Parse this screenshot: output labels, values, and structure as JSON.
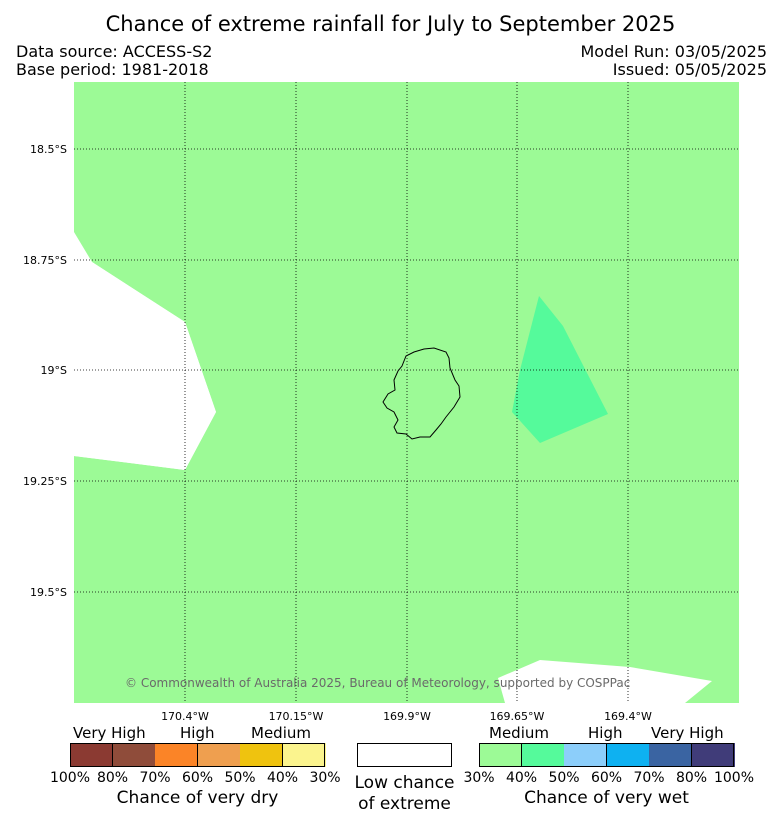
{
  "title": "Chance of extreme rainfall for July to September 2025",
  "meta": {
    "data_source": "Data source: ACCESS-S2",
    "base_period": "Base period: 1981-2018",
    "model_run": "Model Run: 03/05/2025",
    "issued": "Issued: 05/05/2025"
  },
  "map": {
    "lat_labels": [
      "18.5°S",
      "18.75°S",
      "19°S",
      "19.25°S",
      "19.5°S"
    ],
    "lon_labels": [
      "170.4°W",
      "170.15°W",
      "169.9°W",
      "169.65°W",
      "169.4°W"
    ],
    "credit": "© Commonwealth of Australia 2025, Bureau of Meteorology, supported by COSPPac",
    "colors": {
      "medium_wet": "#9cfa96",
      "medium_wet_high": "#55fa9b",
      "low_chance": "#ffffff"
    }
  },
  "legend": {
    "dry_groups": [
      "Very High",
      "High",
      "Medium"
    ],
    "dry_ticks": [
      "100%",
      "80%",
      "70%",
      "60%",
      "50%",
      "40%",
      "30%"
    ],
    "dry_colors": [
      "#8b3a32",
      "#8f4c3a",
      "#fb8427",
      "#ef9f4f",
      "#efc30f",
      "#fbf48e"
    ],
    "dry_caption": "Chance of very dry",
    "low_caption_1": "Low chance",
    "low_caption_2": "of extreme",
    "wet_groups": [
      "Medium",
      "High",
      "Very High"
    ],
    "wet_ticks": [
      "30%",
      "40%",
      "50%",
      "60%",
      "70%",
      "80%",
      "100%"
    ],
    "wet_colors": [
      "#9cfa96",
      "#55fa9b",
      "#8ccefa",
      "#0eb1f1",
      "#3a64a2",
      "#403c79"
    ],
    "wet_caption": "Chance of very wet"
  }
}
